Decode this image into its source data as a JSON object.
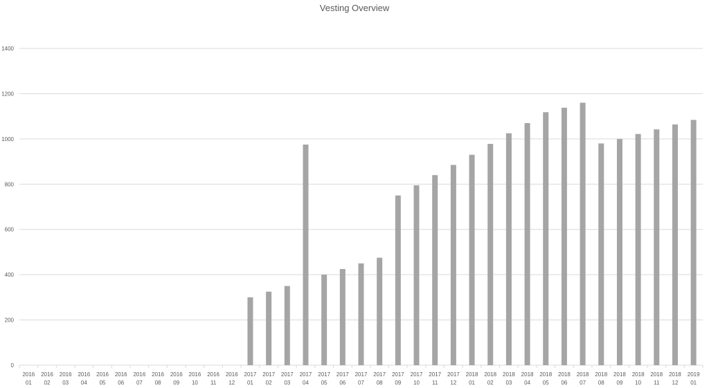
{
  "chart_data": {
    "type": "bar",
    "title": "Vesting Overview",
    "xlabel": "",
    "ylabel": "",
    "ylim": [
      0,
      1400
    ],
    "yticks": [
      0,
      200,
      400,
      600,
      800,
      1000,
      1200,
      1400
    ],
    "grid": true,
    "bar_color": "#a5a5a5",
    "categories": [
      [
        "2016",
        "01"
      ],
      [
        "2016",
        "02"
      ],
      [
        "2016",
        "03"
      ],
      [
        "2016",
        "04"
      ],
      [
        "2016",
        "05"
      ],
      [
        "2016",
        "06"
      ],
      [
        "2016",
        "07"
      ],
      [
        "2016",
        "08"
      ],
      [
        "2016",
        "09"
      ],
      [
        "2016",
        "10"
      ],
      [
        "2016",
        "11"
      ],
      [
        "2016",
        "12"
      ],
      [
        "2017",
        "01"
      ],
      [
        "2017",
        "02"
      ],
      [
        "2017",
        "03"
      ],
      [
        "2017",
        "04"
      ],
      [
        "2017",
        "05"
      ],
      [
        "2017",
        "06"
      ],
      [
        "2017",
        "07"
      ],
      [
        "2017",
        "08"
      ],
      [
        "2017",
        "09"
      ],
      [
        "2017",
        "10"
      ],
      [
        "2017",
        "11"
      ],
      [
        "2017",
        "12"
      ],
      [
        "2018",
        "01"
      ],
      [
        "2018",
        "02"
      ],
      [
        "2018",
        "03"
      ],
      [
        "2018",
        "04"
      ],
      [
        "2018",
        "05"
      ],
      [
        "2018",
        "06"
      ],
      [
        "2018",
        "07"
      ],
      [
        "2018",
        "08"
      ],
      [
        "2018",
        "09"
      ],
      [
        "2018",
        "10"
      ],
      [
        "2018",
        "11"
      ],
      [
        "2018",
        "12"
      ],
      [
        "2019",
        "01"
      ]
    ],
    "values": [
      0,
      0,
      0,
      0,
      0,
      0,
      0,
      0,
      0,
      0,
      0,
      0,
      300,
      325,
      350,
      975,
      400,
      425,
      450,
      475,
      750,
      795,
      840,
      885,
      930,
      978,
      1025,
      1070,
      1118,
      1138,
      1160,
      980,
      1000,
      1022,
      1042,
      1064,
      1084
    ]
  }
}
